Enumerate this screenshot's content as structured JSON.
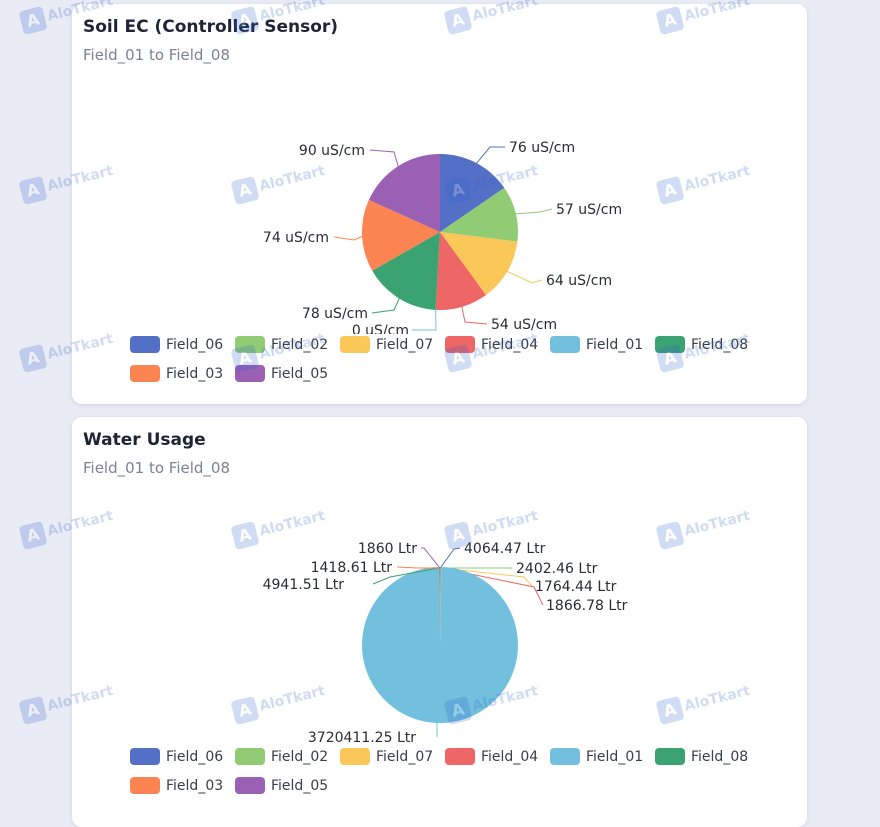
{
  "colors": {
    "Field_06": "#5470c6",
    "Field_02": "#91cc75",
    "Field_07": "#fac858",
    "Field_04": "#ee6666",
    "Field_01": "#73c0de",
    "Field_08": "#3ba272",
    "Field_03": "#fc8452",
    "Field_05": "#9a60b4"
  },
  "watermark": {
    "text": "AloTkart",
    "logo": "A"
  },
  "ec_card": {
    "title": "Soil EC (Controller Sensor)",
    "subtitle": "Field_01 to Field_08",
    "legend": [
      "Field_06",
      "Field_02",
      "Field_07",
      "Field_04",
      "Field_01",
      "Field_08",
      "Field_03",
      "Field_05"
    ]
  },
  "water_card": {
    "title": "Water Usage",
    "subtitle": "Field_01 to Field_08",
    "legend": [
      "Field_06",
      "Field_02",
      "Field_07",
      "Field_04",
      "Field_01",
      "Field_08",
      "Field_03",
      "Field_05"
    ]
  },
  "chart_data": [
    {
      "type": "pie",
      "title": "Soil EC (Controller Sensor)",
      "subtitle": "Field_01 to Field_08",
      "unit": "uS/cm",
      "slices": [
        {
          "name": "Field_06",
          "value": 76,
          "label": "76 uS/cm"
        },
        {
          "name": "Field_02",
          "value": 57,
          "label": "57 uS/cm"
        },
        {
          "name": "Field_07",
          "value": 64,
          "label": "64 uS/cm"
        },
        {
          "name": "Field_04",
          "value": 54,
          "label": "54 uS/cm"
        },
        {
          "name": "Field_01",
          "value": 0,
          "label": "0 uS/cm"
        },
        {
          "name": "Field_08",
          "value": 78,
          "label": "78 uS/cm"
        },
        {
          "name": "Field_03",
          "value": 74,
          "label": "74 uS/cm"
        },
        {
          "name": "Field_05",
          "value": 90,
          "label": "90 uS/cm"
        }
      ],
      "legend_position": "bottom"
    },
    {
      "type": "pie",
      "title": "Water Usage",
      "subtitle": "Field_01 to Field_08",
      "unit": "Ltr",
      "slices": [
        {
          "name": "Field_06",
          "value": 4064.47,
          "label": "4064.47 Ltr"
        },
        {
          "name": "Field_02",
          "value": 2402.46,
          "label": "2402.46 Ltr"
        },
        {
          "name": "Field_07",
          "value": 1764.44,
          "label": "1764.44 Ltr"
        },
        {
          "name": "Field_04",
          "value": 1866.78,
          "label": "1866.78 Ltr"
        },
        {
          "name": "Field_01",
          "value": 3720411.25,
          "label": "3720411.25 Ltr"
        },
        {
          "name": "Field_08",
          "value": 4941.51,
          "label": "4941.51 Ltr"
        },
        {
          "name": "Field_03",
          "value": 1418.61,
          "label": "1418.61 Ltr"
        },
        {
          "name": "Field_05",
          "value": 1860,
          "label": "1860 Ltr"
        }
      ],
      "legend_position": "bottom"
    }
  ]
}
